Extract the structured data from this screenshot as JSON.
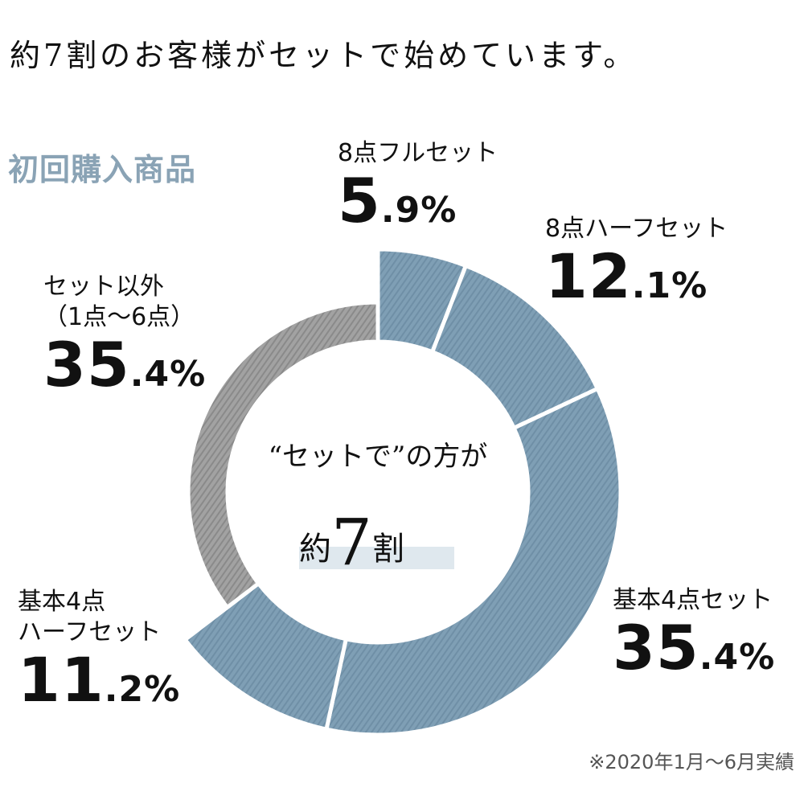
{
  "title": "約7割のお客様がセットで始めています。",
  "subtitle": "初回購入商品",
  "center": {
    "line1": "“セットで”の方が",
    "pre": "約",
    "num": "7",
    "post": "割"
  },
  "note": "※2020年1月〜6月実績",
  "colors": {
    "set": "#7f9fb5",
    "other": "#9b9b9b",
    "subtitle": "#8aa3b5"
  },
  "chart_data": {
    "type": "pie",
    "title": "初回購入商品",
    "start": "12 o'clock, clockwise",
    "slices": [
      {
        "label": "8点フルセット",
        "label_lines": [
          "8点フルセット"
        ],
        "value": 5.9,
        "num": "5",
        "dec": ".9%",
        "group": "set"
      },
      {
        "label": "8点ハーフセット",
        "label_lines": [
          "8点ハーフセット"
        ],
        "value": 12.1,
        "num": "12",
        "dec": ".1%",
        "group": "set"
      },
      {
        "label": "基本4点セット",
        "label_lines": [
          "基本4点セット"
        ],
        "value": 35.4,
        "num": "35",
        "dec": ".4%",
        "group": "set"
      },
      {
        "label": "基本4点ハーフセット",
        "label_lines": [
          "基本4点",
          "ハーフセット"
        ],
        "value": 11.2,
        "num": "11",
        "dec": ".2%",
        "group": "set"
      },
      {
        "label": "セット以外（1点〜6点）",
        "label_lines": [
          "セット以外",
          "（1点〜6点）"
        ],
        "value": 35.4,
        "num": "35",
        "dec": ".4%",
        "group": "other"
      }
    ]
  }
}
